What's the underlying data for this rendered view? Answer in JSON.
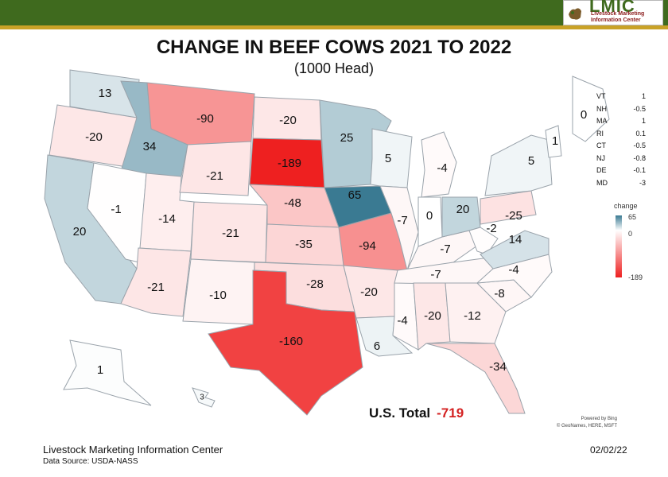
{
  "header": {
    "brand": "LMIC",
    "brand_line1": "Livestock Marketing",
    "brand_line2": "Information Center",
    "colors": {
      "bar": "#3f6a1e",
      "stripe": "#c9a227"
    }
  },
  "title": "CHANGE IN BEEF COWS 2021 TO 2022",
  "subtitle": "(1000 Head)",
  "states": [
    {
      "code": "WA",
      "value": 13
    },
    {
      "code": "OR",
      "value": -20
    },
    {
      "code": "CA",
      "value": 20
    },
    {
      "code": "ID",
      "value": 34
    },
    {
      "code": "NV",
      "value": -1
    },
    {
      "code": "UT",
      "value": -14
    },
    {
      "code": "AZ",
      "value": -21
    },
    {
      "code": "MT",
      "value": -90
    },
    {
      "code": "WY",
      "value": -21
    },
    {
      "code": "CO",
      "value": -21
    },
    {
      "code": "NM",
      "value": -10
    },
    {
      "code": "ND",
      "value": -20
    },
    {
      "code": "SD",
      "value": -189
    },
    {
      "code": "NE",
      "value": -48
    },
    {
      "code": "KS",
      "value": -35
    },
    {
      "code": "OK",
      "value": -28
    },
    {
      "code": "TX",
      "value": -160
    },
    {
      "code": "MN",
      "value": 25
    },
    {
      "code": "IA",
      "value": 65
    },
    {
      "code": "MO",
      "value": -94
    },
    {
      "code": "AR",
      "value": -20
    },
    {
      "code": "LA",
      "value": 6
    },
    {
      "code": "WI",
      "value": 5
    },
    {
      "code": "IL",
      "value": -7
    },
    {
      "code": "MS",
      "value": -4
    },
    {
      "code": "MI",
      "value": -4
    },
    {
      "code": "IN",
      "value": 0
    },
    {
      "code": "KY",
      "value": -7
    },
    {
      "code": "TN",
      "value": -7
    },
    {
      "code": "AL",
      "value": -20
    },
    {
      "code": "OH",
      "value": 20
    },
    {
      "code": "WV",
      "value": -2
    },
    {
      "code": "GA",
      "value": -12
    },
    {
      "code": "FL",
      "value": -34
    },
    {
      "code": "SC",
      "value": -8
    },
    {
      "code": "NC",
      "value": -4
    },
    {
      "code": "VA",
      "value": 14
    },
    {
      "code": "PA",
      "value": -25
    },
    {
      "code": "NY",
      "value": 5
    },
    {
      "code": "ME",
      "value": 0
    },
    {
      "code": "AK",
      "value": 1
    },
    {
      "code": "HI",
      "value": 3
    }
  ],
  "small_states": [
    {
      "code": "VT",
      "value": "1"
    },
    {
      "code": "NH",
      "value": "-0.5"
    },
    {
      "code": "MA",
      "value": "1"
    },
    {
      "code": "RI",
      "value": "0.1"
    },
    {
      "code": "CT",
      "value": "-0.5"
    },
    {
      "code": "NJ",
      "value": "-0.8"
    },
    {
      "code": "DE",
      "value": "-0.1"
    },
    {
      "code": "MD",
      "value": "-3"
    }
  ],
  "vt_map_label": "1",
  "legend": {
    "title": "change",
    "max": "65",
    "mid": "0",
    "min": "-189",
    "colors": {
      "max": "#3a7a92",
      "mid": "#ffffff",
      "min": "#ee2020"
    }
  },
  "total": {
    "label": "U.S. Total",
    "value": "-719"
  },
  "powered_by": "Powered by Bing",
  "attribution": "© GeoNames, HERE, MSFT",
  "footer": {
    "org": "Livestock Marketing Information  Center",
    "source": "Data Source: USDA-NASS",
    "date": "02/02/22"
  }
}
